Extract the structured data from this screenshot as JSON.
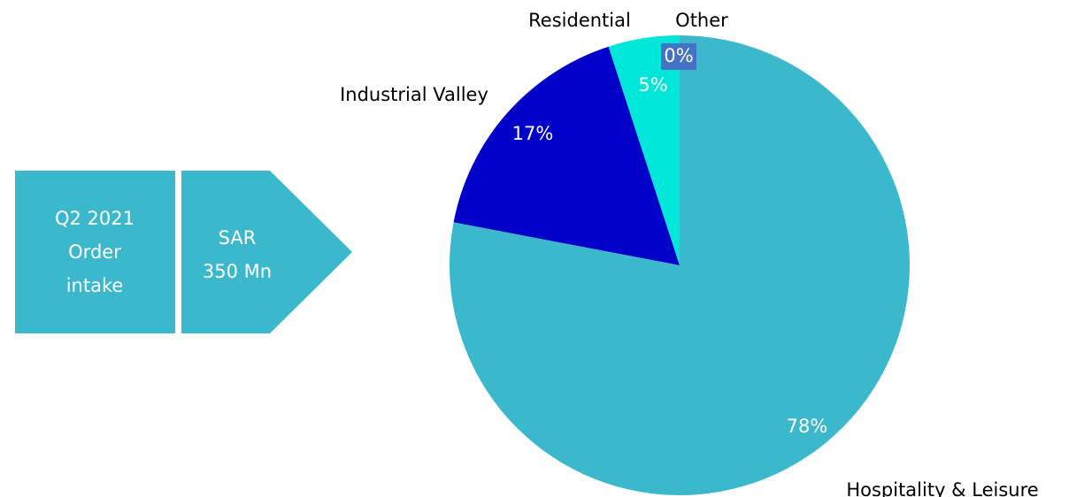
{
  "panels": [
    {
      "lines": [
        "Q2 2021",
        "Order",
        "intake"
      ]
    },
    {
      "lines": [
        "SAR",
        "350 Mn"
      ]
    }
  ],
  "chart_data": {
    "type": "pie",
    "categories": [
      "Hospitality & Leisure",
      "Industrial Valley",
      "Residential",
      "Other"
    ],
    "values": [
      78,
      17,
      5,
      0
    ],
    "value_labels": [
      "78%",
      "17%",
      "5%",
      "0%"
    ],
    "colors": [
      "#3bb8cc",
      "#0000c8",
      "#00e6d8",
      "#4472c4"
    ]
  }
}
